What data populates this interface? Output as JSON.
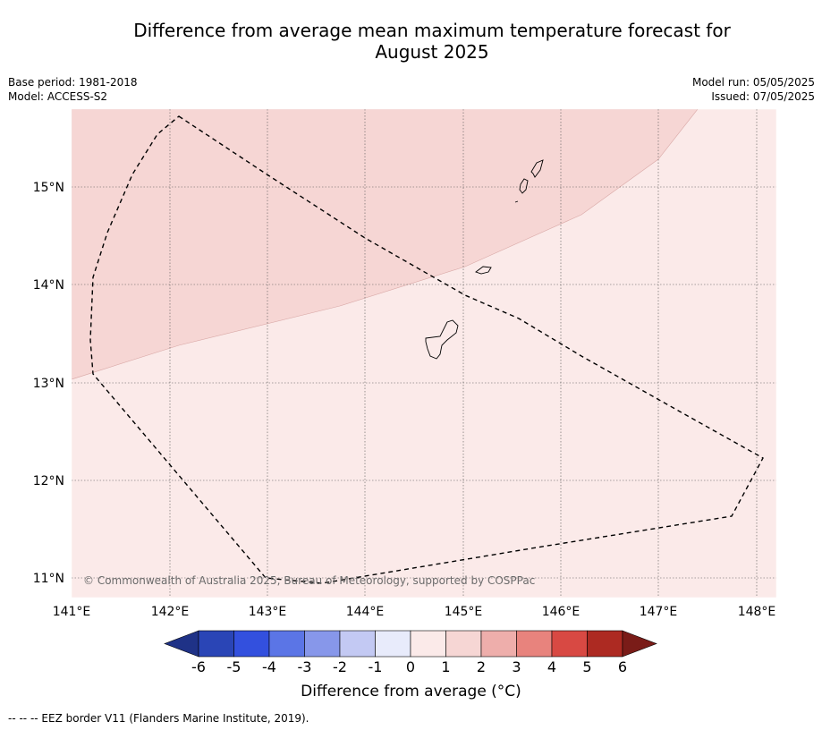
{
  "title_line1": "Difference from average mean maximum temperature forecast for",
  "title_line2": "August 2025",
  "meta": {
    "base_period": "Base period: 1981-2018",
    "model": "Model: ACCESS-S2",
    "model_run": "Model run: 05/05/2025",
    "issued": "Issued: 07/05/2025"
  },
  "map": {
    "lon_ticks": [
      "141°E",
      "142°E",
      "143°E",
      "144°E",
      "145°E",
      "146°E",
      "147°E",
      "148°E"
    ],
    "lat_ticks": [
      "15°N",
      "14°N",
      "13°N",
      "12°N",
      "11°N"
    ],
    "copyright": "© Commonwealth of Australia 2025, Bureau of Meteorology, supported by COSPPac",
    "regions": [
      {
        "category": "1 to 2",
        "color": "#f6d6d4"
      },
      {
        "category": "0 to 1",
        "color": "#fbeae9"
      }
    ]
  },
  "colorbar": {
    "ticks": [
      "-6",
      "-5",
      "-4",
      "-3",
      "-2",
      "-1",
      "0",
      "1",
      "2",
      "3",
      "4",
      "5",
      "6"
    ],
    "colors": [
      "#1f3287",
      "#2a45b6",
      "#3350de",
      "#5b75e6",
      "#8797ea",
      "#c3c9f3",
      "#e8ebfb",
      "#fbeae9",
      "#f6d6d4",
      "#eeaeab",
      "#e8837d",
      "#d84943",
      "#ad2a22",
      "#7a1c18"
    ],
    "label": "Difference from average (°C)"
  },
  "footer": "--  --  -- EEZ border V11 (Flanders Marine Institute, 2019)."
}
